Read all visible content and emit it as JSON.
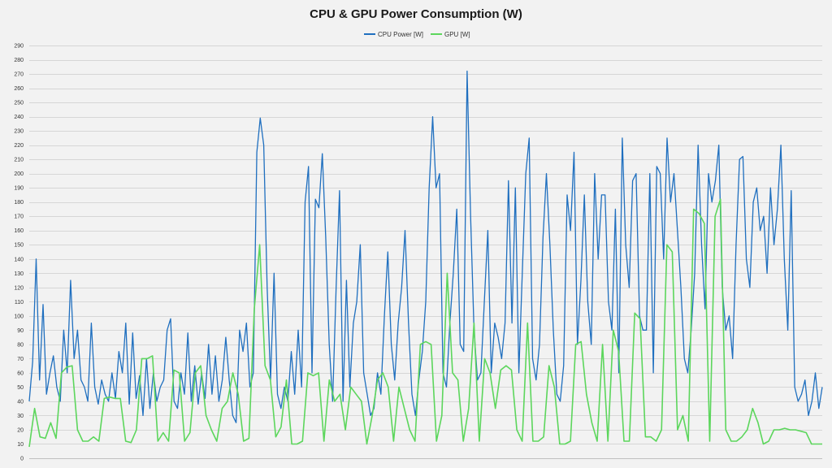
{
  "chart_data": {
    "type": "line",
    "title": "CPU & GPU Power Consumption (W)",
    "xlabel": "",
    "ylabel": "",
    "ylim": [
      0,
      290
    ],
    "yticks": [
      0,
      10,
      20,
      30,
      40,
      50,
      60,
      70,
      80,
      90,
      100,
      110,
      120,
      130,
      140,
      150,
      160,
      170,
      180,
      190,
      200,
      210,
      220,
      230,
      240,
      250,
      260,
      270,
      280,
      290
    ],
    "grid": true,
    "legend_position": "top-center",
    "series": [
      {
        "name": "CPU Power [W]",
        "color": "#1f6fbf",
        "values": [
          40,
          68,
          140,
          55,
          108,
          45,
          60,
          72,
          50,
          40,
          90,
          60,
          125,
          70,
          90,
          55,
          50,
          40,
          95,
          50,
          38,
          55,
          45,
          40,
          60,
          42,
          75,
          60,
          95,
          38,
          88,
          42,
          58,
          30,
          70,
          35,
          60,
          40,
          50,
          55,
          90,
          98,
          40,
          35,
          60,
          45,
          88,
          40,
          65,
          38,
          60,
          42,
          80,
          45,
          72,
          40,
          55,
          85,
          55,
          30,
          25,
          90,
          75,
          95,
          50,
          60,
          215,
          239,
          220,
          120,
          55,
          130,
          45,
          35,
          50,
          40,
          75,
          45,
          90,
          50,
          180,
          205,
          60,
          182,
          176,
          214,
          155,
          80,
          40,
          120,
          188,
          40,
          125,
          50,
          95,
          110,
          150,
          60,
          45,
          30,
          35,
          60,
          45,
          100,
          145,
          80,
          55,
          95,
          120,
          160,
          95,
          45,
          30,
          55,
          75,
          110,
          190,
          240,
          190,
          200,
          60,
          50,
          95,
          130,
          175,
          80,
          75,
          272,
          170,
          90,
          55,
          60,
          110,
          160,
          60,
          95,
          85,
          70,
          95,
          195,
          95,
          190,
          60,
          130,
          200,
          225,
          70,
          55,
          80,
          155,
          200,
          150,
          90,
          45,
          40,
          65,
          185,
          160,
          215,
          80,
          125,
          185,
          110,
          80,
          200,
          140,
          185,
          185,
          110,
          90,
          175,
          60,
          225,
          150,
          120,
          195,
          200,
          100,
          90,
          90,
          200,
          60,
          205,
          200,
          140,
          225,
          180,
          200,
          160,
          120,
          70,
          60,
          90,
          130,
          220,
          150,
          105,
          200,
          180,
          195,
          220,
          120,
          90,
          100,
          70,
          150,
          210,
          212,
          140,
          120,
          180,
          190,
          160,
          170,
          130,
          190,
          150,
          175,
          220,
          140,
          90,
          188,
          50,
          40,
          45,
          55,
          30,
          40,
          60,
          35,
          50
        ]
      },
      {
        "name": "GPU  [W]",
        "color": "#5cd65c",
        "values": [
          8,
          35,
          15,
          14,
          25,
          14,
          60,
          64,
          65,
          20,
          12,
          12,
          15,
          12,
          42,
          43,
          42,
          42,
          12,
          11,
          20,
          70,
          70,
          72,
          12,
          18,
          12,
          62,
          60,
          12,
          18,
          60,
          65,
          30,
          20,
          12,
          35,
          40,
          60,
          45,
          12,
          14,
          105,
          150,
          65,
          55,
          15,
          22,
          55,
          10,
          10,
          12,
          60,
          58,
          60,
          12,
          55,
          40,
          45,
          20,
          50,
          45,
          40,
          10,
          30,
          55,
          60,
          50,
          12,
          50,
          35,
          20,
          12,
          80,
          82,
          80,
          12,
          30,
          130,
          60,
          55,
          12,
          35,
          95,
          12,
          70,
          60,
          35,
          62,
          65,
          62,
          20,
          12,
          95,
          12,
          12,
          15,
          65,
          50,
          10,
          10,
          12,
          80,
          82,
          45,
          25,
          12,
          80,
          12,
          90,
          75,
          12,
          12,
          102,
          98,
          15,
          15,
          12,
          20,
          150,
          145,
          20,
          30,
          12,
          175,
          172,
          165,
          12,
          170,
          182,
          20,
          12,
          12,
          15,
          20,
          35,
          25,
          10,
          12,
          20,
          20,
          21,
          20,
          20,
          19,
          18,
          10,
          10,
          10
        ]
      }
    ]
  }
}
